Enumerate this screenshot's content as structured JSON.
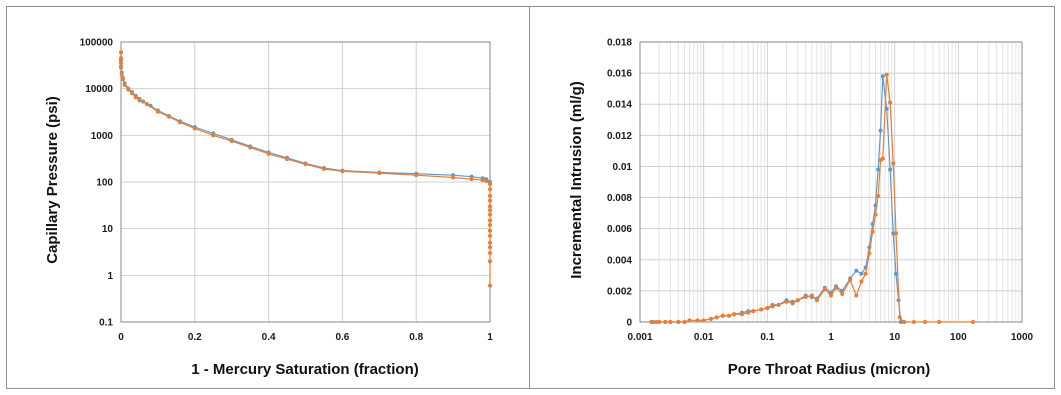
{
  "colors": {
    "series_blue": "#5b9bd5",
    "series_orange": "#ed7d31",
    "grid": "#d0d0d0",
    "axis": "#888888"
  },
  "chart_data": [
    {
      "type": "scatter",
      "xlabel": "1 - Mercury Saturation (fraction)",
      "ylabel": "Capillary Pressure (psi)",
      "xlim": [
        0,
        1
      ],
      "ylim": [
        0.1,
        100000
      ],
      "yscale": "log",
      "grid": true,
      "x_ticks": [
        "0",
        "0.2",
        "0.4",
        "0.6",
        "0.8",
        "1"
      ],
      "y_ticks": [
        "0.1",
        "1",
        "10",
        "100",
        "1000",
        "10000",
        "100000"
      ],
      "series": [
        {
          "color": "#5b9bd5",
          "points": [
            [
              0,
              60000
            ],
            [
              0,
              40000
            ],
            [
              0,
              30000
            ],
            [
              0.002,
              22000
            ],
            [
              0.005,
              17000
            ],
            [
              0.01,
              13000
            ],
            [
              0.02,
              10000
            ],
            [
              0.03,
              8500
            ],
            [
              0.04,
              7000
            ],
            [
              0.05,
              6000
            ],
            [
              0.06,
              5300
            ],
            [
              0.08,
              4300
            ],
            [
              0.1,
              3400
            ],
            [
              0.13,
              2600
            ],
            [
              0.16,
              2000
            ],
            [
              0.2,
              1500
            ],
            [
              0.25,
              1100
            ],
            [
              0.3,
              800
            ],
            [
              0.35,
              580
            ],
            [
              0.4,
              430
            ],
            [
              0.45,
              330
            ],
            [
              0.5,
              250
            ],
            [
              0.55,
              200
            ],
            [
              0.6,
              175
            ],
            [
              0.7,
              160
            ],
            [
              0.8,
              150
            ],
            [
              0.9,
              140
            ],
            [
              0.95,
              130
            ],
            [
              0.98,
              120
            ],
            [
              0.99,
              115
            ],
            [
              1.0,
              100
            ]
          ]
        },
        {
          "color": "#ed7d31",
          "points": [
            [
              0,
              60000
            ],
            [
              0,
              45000
            ],
            [
              0,
              35000
            ],
            [
              0,
              28000
            ],
            [
              0.002,
              20000
            ],
            [
              0.005,
              16000
            ],
            [
              0.01,
              12000
            ],
            [
              0.02,
              9500
            ],
            [
              0.03,
              8000
            ],
            [
              0.04,
              6500
            ],
            [
              0.05,
              5600
            ],
            [
              0.07,
              4700
            ],
            [
              0.1,
              3200
            ],
            [
              0.13,
              2500
            ],
            [
              0.16,
              1900
            ],
            [
              0.2,
              1400
            ],
            [
              0.25,
              1000
            ],
            [
              0.3,
              750
            ],
            [
              0.35,
              550
            ],
            [
              0.4,
              400
            ],
            [
              0.45,
              310
            ],
            [
              0.5,
              240
            ],
            [
              0.55,
              190
            ],
            [
              0.6,
              170
            ],
            [
              0.7,
              155
            ],
            [
              0.8,
              140
            ],
            [
              0.9,
              125
            ],
            [
              0.95,
              115
            ],
            [
              0.98,
              110
            ],
            [
              0.99,
              105
            ],
            [
              1.0,
              90
            ],
            [
              1.0,
              70
            ],
            [
              1.0,
              50
            ],
            [
              1.0,
              40
            ],
            [
              1.0,
              30
            ],
            [
              1.0,
              25
            ],
            [
              1.0,
              20
            ],
            [
              1.0,
              15
            ],
            [
              1.0,
              12
            ],
            [
              1.0,
              9
            ],
            [
              1.0,
              7
            ],
            [
              1.0,
              5
            ],
            [
              1.0,
              4
            ],
            [
              1.0,
              3
            ],
            [
              1.0,
              2
            ],
            [
              1.0,
              0.6
            ]
          ]
        }
      ]
    },
    {
      "type": "line",
      "xlabel": "Pore Throat Radius (micron)",
      "ylabel": "Incremental Intrusion (ml/g)",
      "xlim": [
        0.001,
        1000
      ],
      "xscale": "log",
      "ylim": [
        0,
        0.018
      ],
      "grid": true,
      "x_ticks": [
        "0.001",
        "0.01",
        "0.1",
        "1",
        "10",
        "100",
        "1000"
      ],
      "y_ticks": [
        "0",
        "0.002",
        "0.004",
        "0.006",
        "0.008",
        "0.01",
        "0.012",
        "0.014",
        "0.016",
        "0.018"
      ],
      "series": [
        {
          "color": "#5b9bd5",
          "points": [
            [
              0.0016,
              0
            ],
            [
              0.002,
              0
            ],
            [
              0.0025,
              0
            ],
            [
              0.003,
              0
            ],
            [
              0.004,
              0
            ],
            [
              0.005,
              0
            ],
            [
              0.006,
              0.0001
            ],
            [
              0.008,
              0.0001
            ],
            [
              0.01,
              0.0001
            ],
            [
              0.013,
              0.0002
            ],
            [
              0.016,
              0.0003
            ],
            [
              0.02,
              0.0004
            ],
            [
              0.025,
              0.0004
            ],
            [
              0.03,
              0.0005
            ],
            [
              0.04,
              0.0006
            ],
            [
              0.05,
              0.0007
            ],
            [
              0.06,
              0.0007
            ],
            [
              0.08,
              0.0008
            ],
            [
              0.1,
              0.0009
            ],
            [
              0.12,
              0.0011
            ],
            [
              0.15,
              0.0011
            ],
            [
              0.2,
              0.0014
            ],
            [
              0.25,
              0.0013
            ],
            [
              0.3,
              0.0014
            ],
            [
              0.4,
              0.0017
            ],
            [
              0.5,
              0.0016
            ],
            [
              0.6,
              0.0015
            ],
            [
              0.8,
              0.0022
            ],
            [
              1.0,
              0.0019
            ],
            [
              1.2,
              0.0023
            ],
            [
              1.5,
              0.002
            ],
            [
              2.0,
              0.0028
            ],
            [
              2.5,
              0.0033
            ],
            [
              3.0,
              0.0031
            ],
            [
              3.5,
              0.0035
            ],
            [
              4.0,
              0.0048
            ],
            [
              4.5,
              0.0063
            ],
            [
              5.0,
              0.0075
            ],
            [
              5.5,
              0.0098
            ],
            [
              6.0,
              0.0123
            ],
            [
              6.5,
              0.0158
            ],
            [
              7.5,
              0.0137
            ],
            [
              8.5,
              0.0098
            ],
            [
              9.5,
              0.0057
            ],
            [
              10.5,
              0.0031
            ],
            [
              11.5,
              0.0014
            ],
            [
              12.5,
              0
            ],
            [
              14,
              0
            ]
          ]
        },
        {
          "color": "#ed7d31",
          "points": [
            [
              0.0015,
              0
            ],
            [
              0.0018,
              0
            ],
            [
              0.002,
              0
            ],
            [
              0.0025,
              0
            ],
            [
              0.003,
              0
            ],
            [
              0.004,
              0
            ],
            [
              0.005,
              0
            ],
            [
              0.006,
              0.0001
            ],
            [
              0.008,
              0.0001
            ],
            [
              0.01,
              0.0001
            ],
            [
              0.013,
              0.0002
            ],
            [
              0.016,
              0.0003
            ],
            [
              0.02,
              0.0004
            ],
            [
              0.025,
              0.0004
            ],
            [
              0.03,
              0.0005
            ],
            [
              0.04,
              0.0005
            ],
            [
              0.05,
              0.0006
            ],
            [
              0.06,
              0.0007
            ],
            [
              0.08,
              0.0008
            ],
            [
              0.1,
              0.0009
            ],
            [
              0.12,
              0.001
            ],
            [
              0.15,
              0.0011
            ],
            [
              0.2,
              0.0013
            ],
            [
              0.25,
              0.0012
            ],
            [
              0.3,
              0.0014
            ],
            [
              0.4,
              0.0016
            ],
            [
              0.5,
              0.0017
            ],
            [
              0.6,
              0.0014
            ],
            [
              0.8,
              0.0021
            ],
            [
              1.0,
              0.0017
            ],
            [
              1.2,
              0.0022
            ],
            [
              1.5,
              0.0018
            ],
            [
              2.0,
              0.0027
            ],
            [
              2.5,
              0.0017
            ],
            [
              3.0,
              0.0026
            ],
            [
              3.5,
              0.0031
            ],
            [
              4.0,
              0.0044
            ],
            [
              4.5,
              0.0058
            ],
            [
              5.0,
              0.0069
            ],
            [
              5.5,
              0.0081
            ],
            [
              6.0,
              0.0104
            ],
            [
              6.5,
              0.0105
            ],
            [
              7.5,
              0.0159
            ],
            [
              8.5,
              0.0141
            ],
            [
              9.5,
              0.0102
            ],
            [
              10.5,
              0.0057
            ],
            [
              12,
              0.0003
            ],
            [
              14,
              0
            ],
            [
              20,
              0
            ],
            [
              30,
              0
            ],
            [
              50,
              0
            ],
            [
              170,
              0
            ]
          ]
        }
      ]
    }
  ]
}
